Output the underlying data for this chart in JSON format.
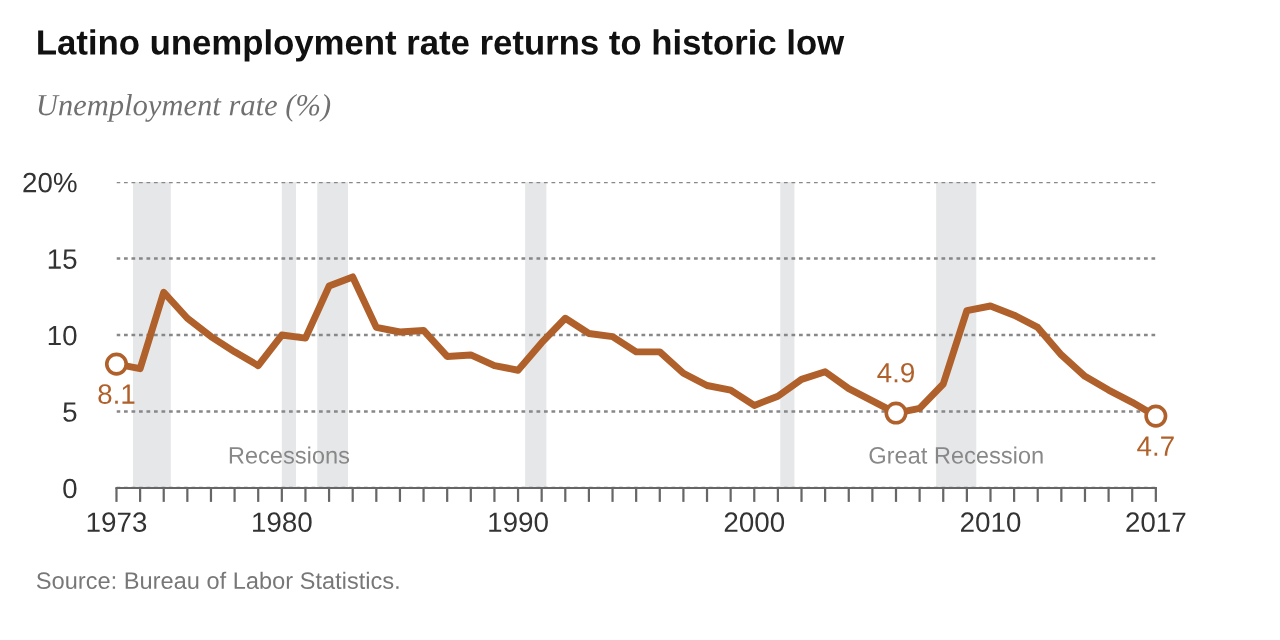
{
  "chart_data": {
    "type": "line",
    "title": "Latino unemployment rate returns to historic low",
    "subtitle": "Unemployment rate (%)",
    "x": [
      1973,
      1974,
      1975,
      1976,
      1977,
      1978,
      1979,
      1980,
      1981,
      1982,
      1983,
      1984,
      1985,
      1986,
      1987,
      1988,
      1989,
      1990,
      1991,
      1992,
      1993,
      1994,
      1995,
      1996,
      1997,
      1998,
      1999,
      2000,
      2001,
      2002,
      2003,
      2004,
      2005,
      2006,
      2007,
      2008,
      2009,
      2010,
      2011,
      2012,
      2013,
      2014,
      2015,
      2016,
      2017
    ],
    "series": [
      {
        "color": "#b0602a",
        "values": [
          8.1,
          7.8,
          12.8,
          11.1,
          9.9,
          8.9,
          8.0,
          10.0,
          9.8,
          13.2,
          13.8,
          10.5,
          10.2,
          10.3,
          8.6,
          8.7,
          8.0,
          7.7,
          9.5,
          11.1,
          10.1,
          9.9,
          8.9,
          8.9,
          7.5,
          6.7,
          6.4,
          5.4,
          6.0,
          7.1,
          7.6,
          6.5,
          5.7,
          4.9,
          5.2,
          6.8,
          11.6,
          11.9,
          11.3,
          10.5,
          8.7,
          7.3,
          6.4,
          5.6,
          4.7
        ],
        "value_labels": [
          "8.1",
          null,
          null,
          null,
          null,
          null,
          null,
          null,
          null,
          null,
          null,
          null,
          null,
          null,
          null,
          null,
          null,
          null,
          null,
          null,
          null,
          null,
          null,
          null,
          null,
          null,
          null,
          null,
          null,
          null,
          null,
          null,
          null,
          "4.9",
          null,
          null,
          null,
          null,
          null,
          null,
          null,
          null,
          null,
          null,
          "4.7"
        ]
      }
    ],
    "xlim": [
      1973,
      2017
    ],
    "xticks": [
      1973,
      {
        "value": 1974,
        "label": null
      },
      {
        "value": 1975,
        "label": null
      },
      {
        "value": 1976,
        "label": null
      },
      {
        "value": 1977,
        "label": null
      },
      {
        "value": 1978,
        "label": null
      },
      {
        "value": 1979,
        "label": null
      },
      1980,
      {
        "value": 1981,
        "label": null
      },
      {
        "value": 1982,
        "label": null
      },
      {
        "value": 1983,
        "label": null
      },
      {
        "value": 1984,
        "label": null
      },
      {
        "value": 1985,
        "label": null
      },
      {
        "value": 1986,
        "label": null
      },
      {
        "value": 1987,
        "label": null
      },
      {
        "value": 1988,
        "label": null
      },
      {
        "value": 1989,
        "label": null
      },
      1990,
      {
        "value": 1991,
        "label": null
      },
      {
        "value": 1992,
        "label": null
      },
      {
        "value": 1993,
        "label": null
      },
      {
        "value": 1994,
        "label": null
      },
      {
        "value": 1995,
        "label": null
      },
      {
        "value": 1996,
        "label": null
      },
      {
        "value": 1997,
        "label": null
      },
      {
        "value": 1998,
        "label": null
      },
      {
        "value": 1999,
        "label": null
      },
      2000,
      {
        "value": 2001,
        "label": null
      },
      {
        "value": 2002,
        "label": null
      },
      {
        "value": 2003,
        "label": null
      },
      {
        "value": 2004,
        "label": null
      },
      {
        "value": 2005,
        "label": null
      },
      {
        "value": 2006,
        "label": null
      },
      {
        "value": 2007,
        "label": null
      },
      {
        "value": 2008,
        "label": null
      },
      {
        "value": 2009,
        "label": null
      },
      2010,
      {
        "value": 2011,
        "label": null
      },
      {
        "value": 2012,
        "label": null
      },
      {
        "value": 2013,
        "label": null
      },
      {
        "value": 2014,
        "label": null
      },
      {
        "value": 2015,
        "label": null
      },
      {
        "value": 2016,
        "label": null
      },
      2017
    ],
    "ylim": [
      0,
      20
    ],
    "yticks": [
      0,
      5,
      10,
      15,
      {
        "value": 20,
        "label": "20%"
      }
    ],
    "grid": "y",
    "bands": [
      {
        "axis": "x",
        "from": 1973.7,
        "to": 1975.3,
        "color": "#e6e7e8"
      },
      {
        "axis": "x",
        "from": 1980.0,
        "to": 1980.6,
        "color": "#e6e7e8",
        "label": "Recessions"
      },
      {
        "axis": "x",
        "from": 1981.5,
        "to": 1982.8,
        "color": "#e6e7e8"
      },
      {
        "axis": "x",
        "from": 1990.3,
        "to": 1991.2,
        "color": "#e6e7e8"
      },
      {
        "axis": "x",
        "from": 2001.1,
        "to": 2001.7,
        "color": "#e6e7e8"
      },
      {
        "axis": "x",
        "from": 2007.7,
        "to": 2009.4,
        "color": "#e6e7e8",
        "label": "Great Recession"
      }
    ],
    "annotations": [
      "Source: Bureau of Labor Statistics."
    ]
  }
}
